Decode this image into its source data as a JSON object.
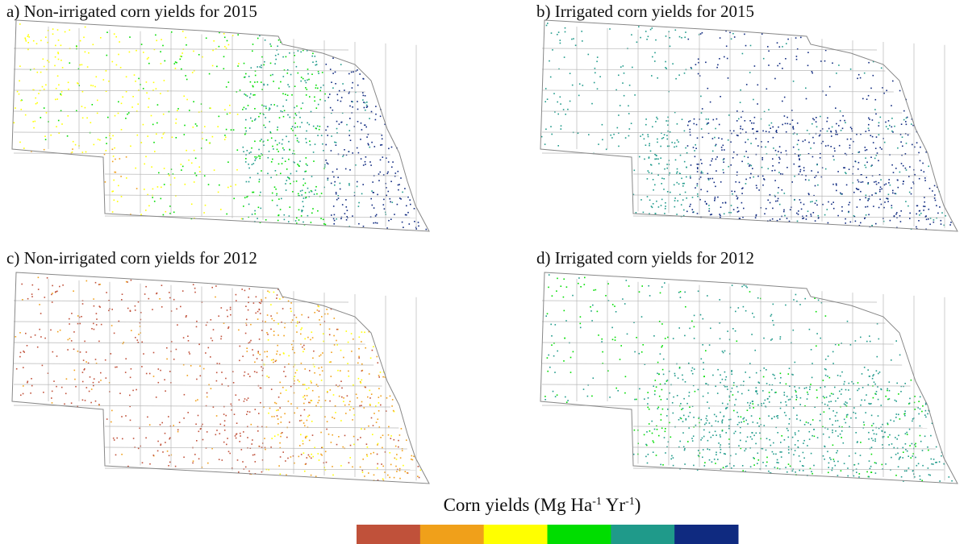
{
  "panels": [
    {
      "title": "a) Non-irrigated corn yields for 2015"
    },
    {
      "title": "b) Irrigated corn yields for 2015"
    },
    {
      "title": "c) Non-irrigated corn yields for 2012"
    },
    {
      "title": "d) Irrigated corn yields for 2012"
    }
  ],
  "legend": {
    "title_parts": [
      "Corn yields (Mg Ha",
      "-1",
      " Yr",
      "-1",
      ")"
    ],
    "colors": [
      "#c0513a",
      "#f0a01a",
      "#ffff00",
      "#00dd00",
      "#1f9a8a",
      "#0f2a80"
    ]
  }
}
